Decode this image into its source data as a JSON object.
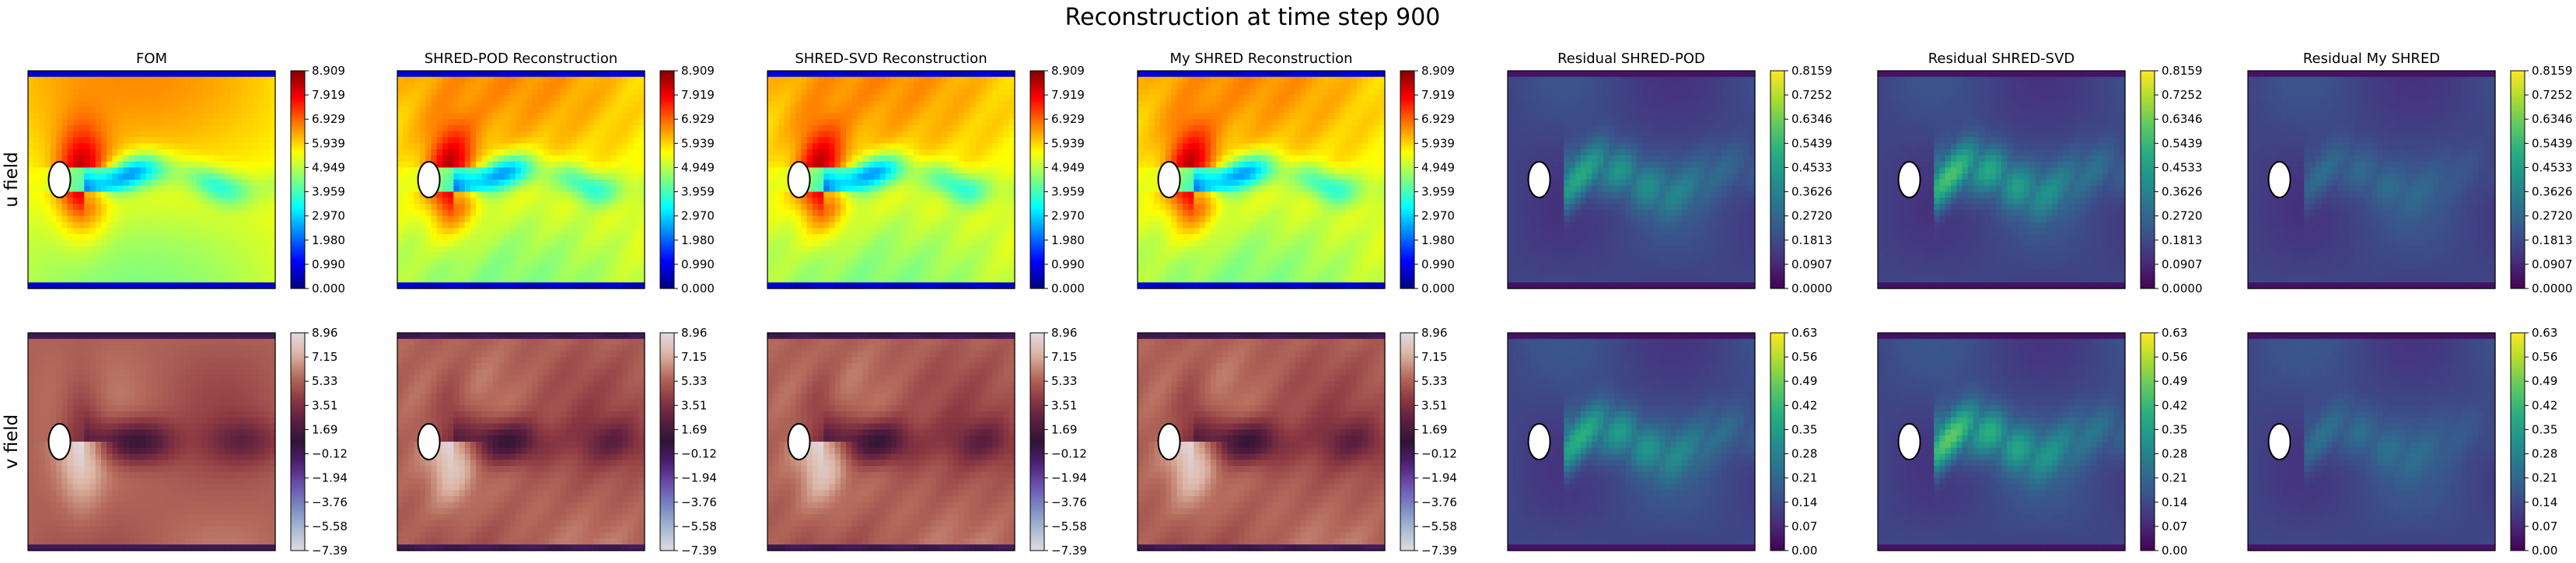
{
  "chart_data": {
    "type": "heatmap",
    "title": "Reconstruction at time step 900",
    "rows": [
      {
        "label": "u field",
        "key": "u"
      },
      {
        "label": "v field",
        "key": "v"
      }
    ],
    "columns": [
      {
        "title": "FOM",
        "kind": "field",
        "source": "fom"
      },
      {
        "title": "SHRED-POD Reconstruction",
        "kind": "field",
        "source": "pod"
      },
      {
        "title": "SHRED-SVD Reconstruction",
        "kind": "field",
        "source": "svd"
      },
      {
        "title": "My SHRED Reconstruction",
        "kind": "field",
        "source": "mine"
      },
      {
        "title": "Residual SHRED-POD",
        "kind": "residual",
        "source": "pod"
      },
      {
        "title": "Residual SHRED-SVD",
        "kind": "residual",
        "source": "svd"
      },
      {
        "title": "Residual My SHRED",
        "kind": "residual",
        "source": "mine"
      }
    ],
    "colorbars": {
      "u_field": {
        "colormap": "jet",
        "range": [
          0.0,
          8.909
        ],
        "ticks": [
          "8.909",
          "7.919",
          "6.929",
          "5.939",
          "4.949",
          "3.959",
          "2.970",
          "1.980",
          "0.990",
          "0.000"
        ]
      },
      "u_residual": {
        "colormap": "viridis",
        "range": [
          0.0,
          0.8159
        ],
        "ticks": [
          "0.8159",
          "0.7252",
          "0.6346",
          "0.5439",
          "0.4533",
          "0.3626",
          "0.2720",
          "0.1813",
          "0.0907",
          "0.0000"
        ]
      },
      "v_field": {
        "colormap": "twilight",
        "range": [
          -7.39,
          8.96
        ],
        "ticks": [
          "8.96",
          "7.15",
          "5.33",
          "3.51",
          "1.69",
          "−0.12",
          "−1.94",
          "−3.76",
          "−5.58",
          "−7.39"
        ]
      },
      "v_residual": {
        "colormap": "viridis",
        "range": [
          0.0,
          0.63
        ],
        "ticks": [
          "0.63",
          "0.56",
          "0.49",
          "0.42",
          "0.35",
          "0.28",
          "0.21",
          "0.14",
          "0.07",
          "0.00"
        ]
      }
    },
    "residual_intensity": {
      "pod": 0.8,
      "svd": 1.0,
      "mine": 0.35
    },
    "obstacle": "cylinder (white ellipse)"
  }
}
